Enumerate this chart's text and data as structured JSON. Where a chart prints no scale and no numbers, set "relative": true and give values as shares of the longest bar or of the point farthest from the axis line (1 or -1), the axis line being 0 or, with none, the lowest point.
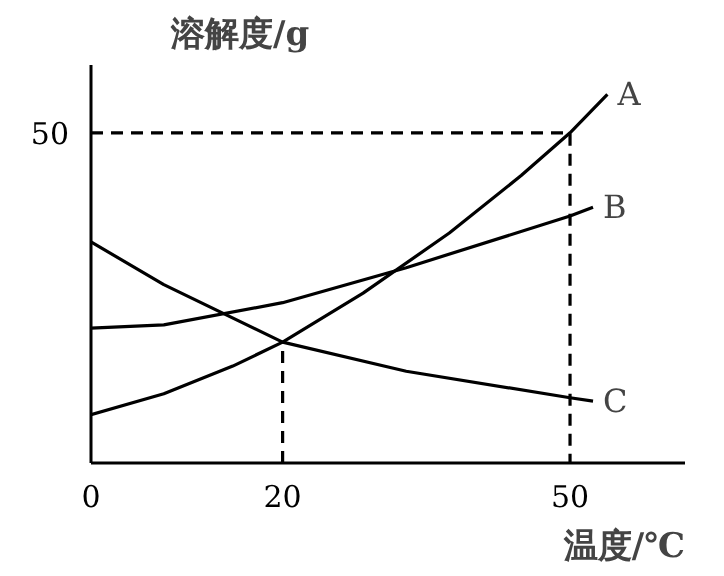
{
  "chart_data": {
    "type": "line",
    "relative": true,
    "xlabel": "温度/℃",
    "ylabel": "溶解度/g",
    "xlim": [
      0,
      62
    ],
    "xticks": [
      0,
      20,
      50
    ],
    "grid": false,
    "marker": "none",
    "line_style": "solid",
    "series": [
      {
        "color": "#000000",
        "x": [
          0,
          7.6,
          14.8,
          20,
          28.4,
          37.4,
          44.9,
          50,
          53.9
        ],
        "values": [
          0.131,
          0.188,
          0.263,
          0.328,
          0.461,
          0.624,
          0.78,
          0.896,
          1
        ]
      },
      {
        "color": "#000000",
        "x": [
          0,
          7.6,
          20,
          32.9,
          50,
          52.4
        ],
        "values": [
          0.366,
          0.375,
          0.435,
          0.53,
          0.67,
          0.694
        ]
      },
      {
        "color": "#000000",
        "x": [
          0,
          7.6,
          20,
          32.9,
          50,
          52.4
        ],
        "values": [
          0.6,
          0.484,
          0.328,
          0.249,
          0.177,
          0.168
        ]
      },
      {
        "color": "#000000",
        "x": [
          0,
          50,
          50
        ],
        "values": [
          0.896,
          0.896,
          0
        ],
        "line_style": "dashed"
      },
      {
        "color": "#000000",
        "x": [
          20,
          20
        ],
        "values": [
          0,
          0.328
        ],
        "line_style": "dashed"
      }
    ],
    "annotations": [
      "A",
      "B",
      "C",
      "50"
    ]
  }
}
